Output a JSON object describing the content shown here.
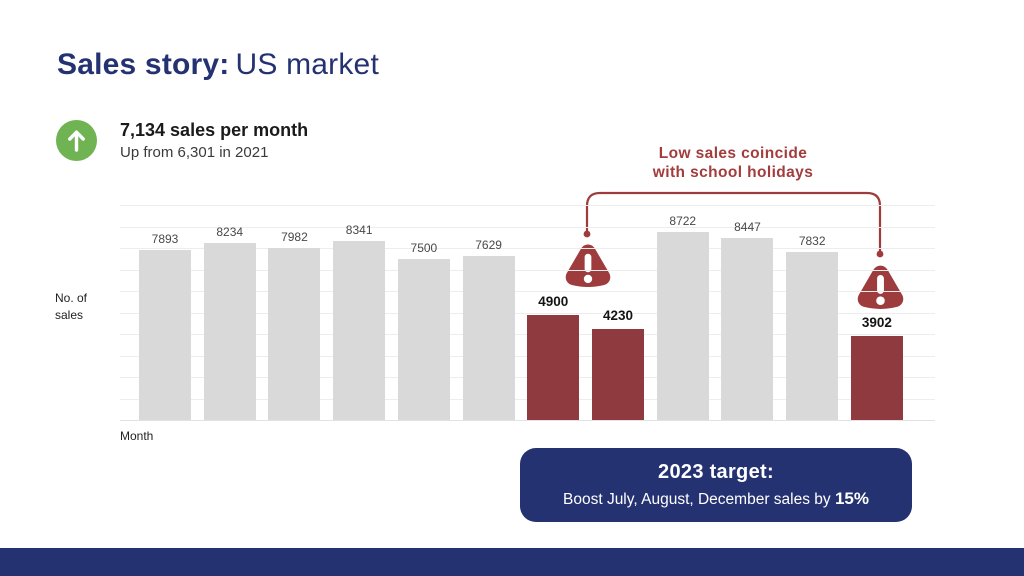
{
  "header": {
    "title_bold": "Sales story:",
    "title_regular": "US market"
  },
  "kpi": {
    "icon": "up-arrow-circle-icon",
    "headline": "7,134 sales per month",
    "subline": "Up from 6,301 in 2021"
  },
  "annotation": {
    "line1": "Low sales coincide",
    "line2": "with school holidays"
  },
  "chart_data": {
    "type": "bar",
    "title": "",
    "xlabel": "Month",
    "ylabel": "No. of sales",
    "ylim": [
      0,
      10000
    ],
    "gridline_step": 1000,
    "grid": true,
    "legend": false,
    "values": [
      7893,
      8234,
      7982,
      8341,
      7500,
      7629,
      4900,
      4230,
      8722,
      8447,
      7832,
      3902
    ],
    "highlighted_indices": [
      6,
      7,
      11
    ],
    "bar_color": "#D9D9D9",
    "highlight_color": "#8E3A3E",
    "note": "12 monthly bars, months unlabeled; low months marked with warning icons"
  },
  "target_box": {
    "title": "2023 target:",
    "body_prefix": "Boost July, August, December sales by ",
    "body_bold": "15%"
  },
  "colors": {
    "navy": "#253271",
    "accent_red": "#9E3B3D",
    "annotation_red": "#A33C3C",
    "bar_red": "#8E3A3E",
    "bar_gray": "#D9D9D9",
    "green": "#6FB352"
  }
}
